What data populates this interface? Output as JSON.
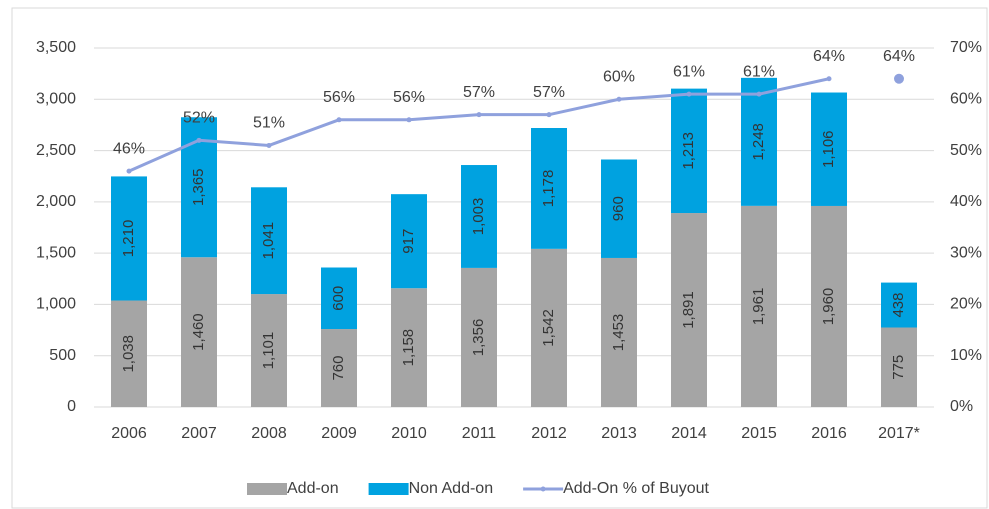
{
  "chart_data": {
    "type": "bar",
    "stacked": true,
    "categories": [
      "2006",
      "2007",
      "2008",
      "2009",
      "2010",
      "2011",
      "2012",
      "2013",
      "2014",
      "2015",
      "2016",
      "2017*"
    ],
    "series": [
      {
        "name": "Add-on",
        "color": "#a5a5a5",
        "values": [
          1038,
          1460,
          1101,
          760,
          1158,
          1356,
          1542,
          1453,
          1891,
          1961,
          1960,
          775
        ],
        "value_labels": [
          "1,038",
          "1,460",
          "1,101",
          "760",
          "1,158",
          "1,356",
          "1,542",
          "1,453",
          "1,891",
          "1,961",
          "1,960",
          "775"
        ]
      },
      {
        "name": "Non Add-on",
        "color": "#00a2e0",
        "values": [
          1210,
          1365,
          1041,
          600,
          917,
          1003,
          1178,
          960,
          1213,
          1248,
          1106,
          438
        ],
        "value_labels": [
          "1,210",
          "1,365",
          "1,041",
          "600",
          "917",
          "1,003",
          "1,178",
          "960",
          "1,213",
          "1,248",
          "1,106",
          "438"
        ]
      },
      {
        "name": "Add-On % of Buyout",
        "type": "line",
        "axis": "y2",
        "color": "#8fa1dd",
        "values": [
          46,
          52,
          51,
          56,
          56,
          57,
          57,
          60,
          61,
          61,
          64,
          64
        ],
        "value_labels": [
          "46%",
          "52%",
          "51%",
          "56%",
          "56%",
          "57%",
          "57%",
          "60%",
          "61%",
          "61%",
          "64%",
          "64%"
        ]
      }
    ],
    "ylim": [
      0,
      3500
    ],
    "yticks": [
      0,
      500,
      {
        "value": 1000,
        "label": "1,000"
      },
      {
        "value": 1500,
        "label": "1,500"
      },
      {
        "value": 2000,
        "label": "2,000"
      },
      {
        "value": 2500,
        "label": "2,500"
      },
      {
        "value": 3000,
        "label": "3,000"
      },
      {
        "value": 3500,
        "label": "3,500"
      }
    ],
    "y2lim": [
      0,
      70
    ],
    "y2ticks": [
      {
        "value": 0,
        "label": "0%"
      },
      {
        "value": 10,
        "label": "10%"
      },
      {
        "value": 20,
        "label": "20%"
      },
      {
        "value": 30,
        "label": "30%"
      },
      {
        "value": 40,
        "label": "40%"
      },
      {
        "value": 50,
        "label": "50%"
      },
      {
        "value": 60,
        "label": "60%"
      },
      {
        "value": 70,
        "label": "70%"
      }
    ],
    "grid": true,
    "legend": "bottom"
  }
}
